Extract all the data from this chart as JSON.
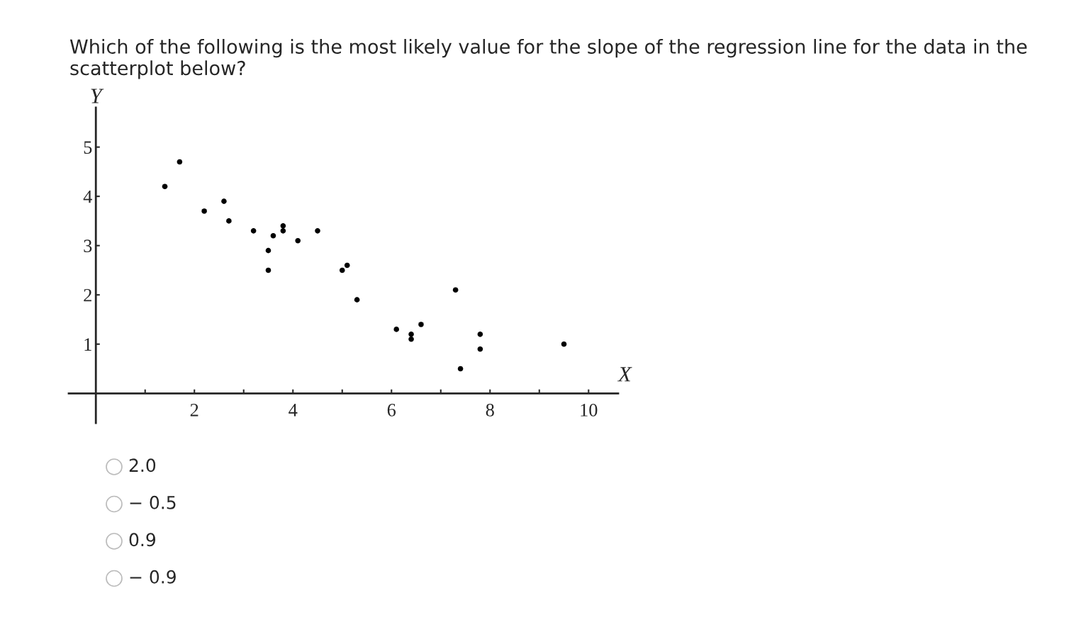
{
  "chart_data": {
    "type": "scatter",
    "title": "Which of the following is the most likely value for the slope of the regression line for the data in the scatterplot below?",
    "xlabel": "X",
    "ylabel": "Y",
    "x": [
      1.4,
      1.7,
      2.2,
      2.6,
      2.7,
      3.2,
      3.5,
      3.5,
      3.6,
      3.8,
      3.8,
      4.1,
      4.5,
      5.0,
      5.1,
      5.3,
      6.1,
      6.4,
      6.4,
      6.6,
      7.3,
      7.4,
      7.8,
      7.8,
      9.5
    ],
    "values": [
      4.2,
      4.7,
      3.7,
      3.9,
      3.5,
      3.3,
      2.5,
      2.9,
      3.2,
      3.4,
      3.3,
      3.1,
      3.3,
      2.5,
      2.6,
      1.9,
      1.3,
      1.2,
      1.1,
      1.4,
      2.1,
      0.5,
      1.2,
      0.9,
      1.0
    ],
    "color": "#000000",
    "marker": "circle",
    "xlim": [
      -0.55,
      10.6
    ],
    "ylim": [
      -0.6,
      5.8
    ],
    "xticks": [
      {
        "value": 1,
        "label": null
      },
      2,
      {
        "value": 3,
        "label": null
      },
      4,
      {
        "value": 5,
        "label": null
      },
      6,
      {
        "value": 7,
        "label": null
      },
      8,
      {
        "value": 9,
        "label": null
      },
      10
    ],
    "yticks": [
      1,
      2,
      3,
      4,
      5
    ],
    "annotations": [
      "2.0",
      "− 0.5",
      "0.9",
      "− 0.9"
    ]
  }
}
